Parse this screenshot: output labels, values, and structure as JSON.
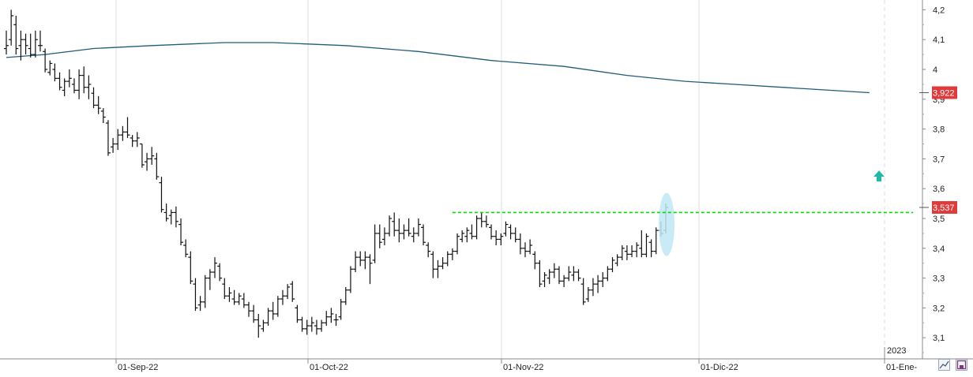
{
  "chart_data": {
    "type": "ohlc",
    "x_axis": {
      "tick_labels": [
        "01-Sep-22",
        "01-Oct-22",
        "01-Nov-22",
        "01-Dic-22",
        "01-Ene-"
      ],
      "year_marker": "2023"
    },
    "y_axis": {
      "ticks": [
        "4,2",
        "4,1",
        "4",
        "3,9",
        "3,8",
        "3,7",
        "3,6",
        "3,5",
        "3,4",
        "3,3",
        "3,2",
        "3,1"
      ],
      "range": [
        3.03,
        4.23
      ],
      "position": "right"
    },
    "grid": true,
    "grid_orientation": "vertical",
    "bars": [
      [
        4.07,
        4.13,
        4.05,
        4.08
      ],
      [
        4.1,
        4.2,
        4.08,
        4.18
      ],
      [
        4.15,
        4.18,
        4.05,
        4.07
      ],
      [
        4.08,
        4.13,
        4.03,
        4.1
      ],
      [
        4.1,
        4.12,
        4.05,
        4.08
      ],
      [
        4.07,
        4.12,
        4.04,
        4.05
      ],
      [
        4.05,
        4.13,
        4.04,
        4.1
      ],
      [
        4.08,
        4.13,
        4.06,
        4.08
      ],
      [
        4.06,
        4.07,
        3.99,
        4.0
      ],
      [
        3.99,
        4.03,
        3.98,
        4.02
      ],
      [
        4.0,
        4.02,
        3.96,
        3.97
      ],
      [
        3.97,
        3.99,
        3.93,
        3.94
      ],
      [
        3.93,
        3.97,
        3.91,
        3.96
      ],
      [
        3.96,
        4.0,
        3.94,
        3.97
      ],
      [
        3.95,
        3.97,
        3.92,
        3.93
      ],
      [
        3.93,
        4.0,
        3.9,
        3.98
      ],
      [
        3.98,
        4.01,
        3.92,
        3.94
      ],
      [
        3.94,
        3.98,
        3.9,
        3.95
      ],
      [
        3.92,
        3.94,
        3.87,
        3.88
      ],
      [
        3.88,
        3.91,
        3.85,
        3.87
      ],
      [
        3.86,
        3.87,
        3.82,
        3.84
      ],
      [
        3.82,
        3.83,
        3.71,
        3.72
      ],
      [
        3.74,
        3.77,
        3.72,
        3.75
      ],
      [
        3.75,
        3.8,
        3.73,
        3.78
      ],
      [
        3.78,
        3.81,
        3.76,
        3.79
      ],
      [
        3.79,
        3.84,
        3.77,
        3.78
      ],
      [
        3.77,
        3.78,
        3.74,
        3.76
      ],
      [
        3.76,
        3.79,
        3.74,
        3.77
      ],
      [
        3.75,
        3.75,
        3.67,
        3.68
      ],
      [
        3.69,
        3.72,
        3.66,
        3.7
      ],
      [
        3.7,
        3.74,
        3.68,
        3.71
      ],
      [
        3.7,
        3.72,
        3.63,
        3.64
      ],
      [
        3.62,
        3.64,
        3.52,
        3.53
      ],
      [
        3.52,
        3.55,
        3.49,
        3.5
      ],
      [
        3.51,
        3.53,
        3.48,
        3.52
      ],
      [
        3.52,
        3.54,
        3.47,
        3.49
      ],
      [
        3.48,
        3.5,
        3.41,
        3.42
      ],
      [
        3.41,
        3.43,
        3.37,
        3.38
      ],
      [
        3.37,
        3.39,
        3.28,
        3.29
      ],
      [
        3.28,
        3.3,
        3.19,
        3.2
      ],
      [
        3.21,
        3.24,
        3.19,
        3.22
      ],
      [
        3.22,
        3.31,
        3.2,
        3.3
      ],
      [
        3.3,
        3.33,
        3.26,
        3.32
      ],
      [
        3.32,
        3.37,
        3.3,
        3.35
      ],
      [
        3.34,
        3.35,
        3.29,
        3.3
      ],
      [
        3.28,
        3.3,
        3.23,
        3.24
      ],
      [
        3.24,
        3.27,
        3.22,
        3.25
      ],
      [
        3.23,
        3.26,
        3.21,
        3.22
      ],
      [
        3.22,
        3.25,
        3.21,
        3.24
      ],
      [
        3.23,
        3.25,
        3.2,
        3.21
      ],
      [
        3.21,
        3.22,
        3.17,
        3.19
      ],
      [
        3.19,
        3.21,
        3.15,
        3.16
      ],
      [
        3.16,
        3.18,
        3.1,
        3.14
      ],
      [
        3.13,
        3.16,
        3.12,
        3.15
      ],
      [
        3.15,
        3.2,
        3.14,
        3.19
      ],
      [
        3.19,
        3.22,
        3.16,
        3.18
      ],
      [
        3.18,
        3.24,
        3.17,
        3.23
      ],
      [
        3.23,
        3.26,
        3.21,
        3.24
      ],
      [
        3.24,
        3.28,
        3.23,
        3.27
      ],
      [
        3.28,
        3.29,
        3.22,
        3.23
      ],
      [
        3.2,
        3.21,
        3.15,
        3.16
      ],
      [
        3.16,
        3.17,
        3.12,
        3.13
      ],
      [
        3.13,
        3.16,
        3.11,
        3.14
      ],
      [
        3.14,
        3.17,
        3.12,
        3.15
      ],
      [
        3.14,
        3.16,
        3.11,
        3.13
      ],
      [
        3.13,
        3.16,
        3.12,
        3.15
      ],
      [
        3.15,
        3.19,
        3.14,
        3.17
      ],
      [
        3.17,
        3.2,
        3.15,
        3.18
      ],
      [
        3.16,
        3.18,
        3.14,
        3.16
      ],
      [
        3.17,
        3.23,
        3.16,
        3.22
      ],
      [
        3.22,
        3.27,
        3.21,
        3.26
      ],
      [
        3.26,
        3.34,
        3.25,
        3.33
      ],
      [
        3.33,
        3.39,
        3.32,
        3.37
      ],
      [
        3.37,
        3.39,
        3.34,
        3.36
      ],
      [
        3.36,
        3.39,
        3.33,
        3.37
      ],
      [
        3.37,
        3.38,
        3.28,
        3.35
      ],
      [
        3.36,
        3.48,
        3.35,
        3.45
      ],
      [
        3.45,
        3.48,
        3.4,
        3.42
      ],
      [
        3.43,
        3.47,
        3.41,
        3.45
      ],
      [
        3.45,
        3.51,
        3.44,
        3.5
      ],
      [
        3.49,
        3.52,
        3.44,
        3.46
      ],
      [
        3.46,
        3.5,
        3.42,
        3.45
      ],
      [
        3.45,
        3.48,
        3.43,
        3.46
      ],
      [
        3.46,
        3.5,
        3.44,
        3.45
      ],
      [
        3.44,
        3.47,
        3.42,
        3.45
      ],
      [
        3.45,
        3.5,
        3.44,
        3.48
      ],
      [
        3.47,
        3.48,
        3.41,
        3.42
      ],
      [
        3.41,
        3.42,
        3.37,
        3.39
      ],
      [
        3.38,
        3.39,
        3.3,
        3.33
      ],
      [
        3.33,
        3.36,
        3.3,
        3.34
      ],
      [
        3.34,
        3.37,
        3.33,
        3.35
      ],
      [
        3.35,
        3.39,
        3.34,
        3.38
      ],
      [
        3.38,
        3.4,
        3.36,
        3.39
      ],
      [
        3.39,
        3.45,
        3.38,
        3.44
      ],
      [
        3.43,
        3.46,
        3.42,
        3.45
      ],
      [
        3.44,
        3.47,
        3.42,
        3.46
      ],
      [
        3.45,
        3.48,
        3.43,
        3.44
      ],
      [
        3.44,
        3.51,
        3.43,
        3.5
      ],
      [
        3.5,
        3.52,
        3.47,
        3.49
      ],
      [
        3.49,
        3.51,
        3.47,
        3.48
      ],
      [
        3.47,
        3.48,
        3.43,
        3.44
      ],
      [
        3.44,
        3.46,
        3.41,
        3.43
      ],
      [
        3.43,
        3.45,
        3.41,
        3.44
      ],
      [
        3.45,
        3.49,
        3.44,
        3.48
      ],
      [
        3.47,
        3.48,
        3.43,
        3.45
      ],
      [
        3.45,
        3.47,
        3.42,
        3.43
      ],
      [
        3.43,
        3.45,
        3.38,
        3.4
      ],
      [
        3.4,
        3.42,
        3.37,
        3.39
      ],
      [
        3.39,
        3.43,
        3.38,
        3.41
      ],
      [
        3.38,
        3.39,
        3.33,
        3.35
      ],
      [
        3.35,
        3.36,
        3.27,
        3.28
      ],
      [
        3.29,
        3.32,
        3.27,
        3.31
      ],
      [
        3.3,
        3.33,
        3.28,
        3.32
      ],
      [
        3.32,
        3.35,
        3.3,
        3.33
      ],
      [
        3.33,
        3.34,
        3.28,
        3.29
      ],
      [
        3.29,
        3.31,
        3.27,
        3.3
      ],
      [
        3.3,
        3.34,
        3.29,
        3.32
      ],
      [
        3.31,
        3.34,
        3.29,
        3.32
      ],
      [
        3.32,
        3.33,
        3.29,
        3.3
      ],
      [
        3.28,
        3.3,
        3.21,
        3.22
      ],
      [
        3.23,
        3.27,
        3.22,
        3.26
      ],
      [
        3.26,
        3.3,
        3.24,
        3.28
      ],
      [
        3.28,
        3.31,
        3.25,
        3.29
      ],
      [
        3.29,
        3.32,
        3.27,
        3.3
      ],
      [
        3.3,
        3.34,
        3.29,
        3.33
      ],
      [
        3.33,
        3.37,
        3.32,
        3.36
      ],
      [
        3.35,
        3.38,
        3.34,
        3.37
      ],
      [
        3.37,
        3.41,
        3.36,
        3.4
      ],
      [
        3.39,
        3.41,
        3.36,
        3.38
      ],
      [
        3.38,
        3.41,
        3.37,
        3.39
      ],
      [
        3.39,
        3.42,
        3.37,
        3.41
      ],
      [
        3.4,
        3.46,
        3.37,
        3.38
      ],
      [
        3.38,
        3.45,
        3.37,
        3.44
      ],
      [
        3.42,
        3.43,
        3.37,
        3.39
      ],
      [
        3.39,
        3.47,
        3.38,
        3.46
      ],
      [
        3.46,
        3.49,
        3.44,
        3.45
      ],
      [
        3.46,
        3.55,
        3.45,
        3.537
      ]
    ],
    "moving_average": [
      [
        0,
        4.04
      ],
      [
        8,
        4.05
      ],
      [
        18,
        4.07
      ],
      [
        30,
        4.08
      ],
      [
        45,
        4.09
      ],
      [
        55,
        4.09
      ],
      [
        70,
        4.08
      ],
      [
        85,
        4.06
      ],
      [
        100,
        4.03
      ],
      [
        115,
        4.01
      ],
      [
        128,
        3.98
      ],
      [
        140,
        3.96
      ],
      [
        150,
        3.95
      ],
      [
        160,
        3.94
      ],
      [
        170,
        3.93
      ],
      [
        178,
        3.922
      ]
    ],
    "resistance_line": {
      "value": 3.52,
      "from_bar": 92,
      "to_bar": 188
    },
    "last_price": "3,537",
    "ma_value": "3,922",
    "up_arrow": {
      "value": 3.64
    },
    "colors": {
      "bars": "#111111",
      "moving_average": "#1f5d78",
      "resistance": "#00dd00",
      "badge": "#e03b3b",
      "arrow": "#20b8a8",
      "highlight": "#bfe8f5",
      "grid": "#dcdcdc"
    }
  }
}
